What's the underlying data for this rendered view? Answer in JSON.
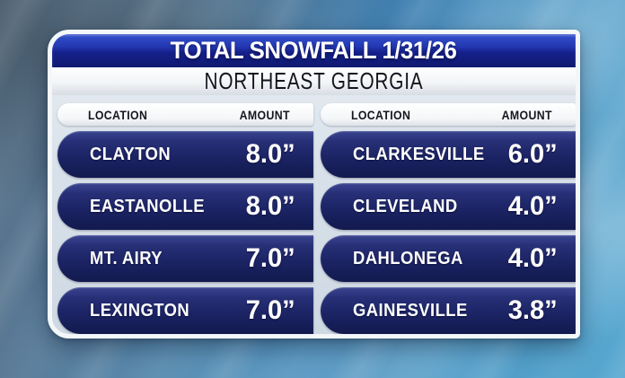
{
  "header": {
    "title": "TOTAL SNOWFALL 1/31/26",
    "subtitle": "NORTHEAST GEORGIA"
  },
  "table": {
    "columns": [
      {
        "header": {
          "location": "LOCATION",
          "amount": "AMOUNT"
        },
        "rows": [
          {
            "location": "CLAYTON",
            "amount": "8.0”"
          },
          {
            "location": "EASTANOLLE",
            "amount": "8.0”"
          },
          {
            "location": "MT. AIRY",
            "amount": "7.0”"
          },
          {
            "location": "LEXINGTON",
            "amount": "7.0”"
          }
        ]
      },
      {
        "header": {
          "location": "LOCATION",
          "amount": "AMOUNT"
        },
        "rows": [
          {
            "location": "CLARKESVILLE",
            "amount": "6.0”"
          },
          {
            "location": "CLEVELAND",
            "amount": "4.0”"
          },
          {
            "location": "DAHLONEGA",
            "amount": "4.0”"
          },
          {
            "location": "GAINESVILLE",
            "amount": "3.8”"
          }
        ]
      }
    ]
  },
  "colors": {
    "header_blue_top": "#3350cc",
    "header_blue_bottom": "#101a70",
    "row_navy_top": "#3a4490",
    "row_navy_bottom": "#121a4e",
    "panel_background": "#d7e0e9",
    "panel_border": "#f3f7fa",
    "sky_upper_left": "#5d7487",
    "sky_lower_right": "#57a7d0",
    "text_white": "#ffffff",
    "text_dark": "#14141e"
  },
  "chart_data": {
    "type": "table",
    "title": "TOTAL SNOWFALL 1/31/26",
    "subtitle": "NORTHEAST GEORGIA",
    "columns": [
      "LOCATION",
      "AMOUNT"
    ],
    "units": "inches",
    "rows": [
      [
        "CLAYTON",
        8.0
      ],
      [
        "EASTANOLLE",
        8.0
      ],
      [
        "MT. AIRY",
        7.0
      ],
      [
        "LEXINGTON",
        7.0
      ],
      [
        "CLARKESVILLE",
        6.0
      ],
      [
        "CLEVELAND",
        4.0
      ],
      [
        "DAHLONEGA",
        4.0
      ],
      [
        "GAINESVILLE",
        3.8
      ]
    ]
  }
}
